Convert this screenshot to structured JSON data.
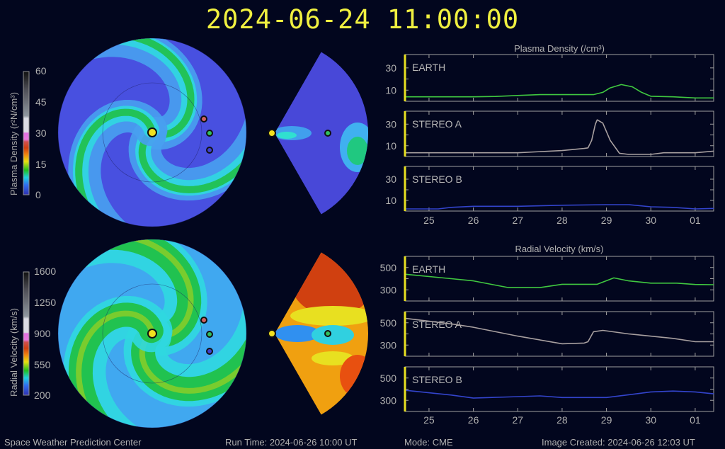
{
  "header": {
    "datetime": "2024-06-24  11:00:00"
  },
  "footer": {
    "org": "Space Weather Prediction Center",
    "run_time": "Run Time: 2024-06-26 10:00 UT",
    "mode": "Mode: CME",
    "created": "Image Created: 2024-06-26 12:03 UT"
  },
  "colorbars": {
    "density": {
      "label": "Plasma Density (r²N/cm³)",
      "ticks": [
        "60",
        "45",
        "30",
        "15",
        "0"
      ]
    },
    "velocity": {
      "label": "Radial Velocity (km/s)",
      "ticks": [
        "1600",
        "1250",
        "900",
        "550",
        "200"
      ]
    }
  },
  "markers": {
    "sun": "#f0e020",
    "stereo_a": "#d06060",
    "earth": "#30c060",
    "stereo_b": "#4040d0"
  },
  "chart_data": [
    {
      "type": "line",
      "title": "Plasma Density (/cm³)",
      "x_ticks": [
        "25",
        "26",
        "27",
        "28",
        "29",
        "30",
        "01"
      ],
      "y_ticks": [
        "30",
        "10"
      ],
      "ylim": [
        0,
        42
      ],
      "xlim": [
        "2024-06-24T11:00",
        "2024-07-01T10:00"
      ],
      "current_time": "2024-06-24T11:00",
      "series": [
        {
          "name": "EARTH",
          "color": "#40c840",
          "points": [
            [
              "2024-06-24T11:00",
              4
            ],
            [
              "2024-06-26T00:00",
              4
            ],
            [
              "2024-06-26T12:00",
              4.3
            ],
            [
              "2024-06-27T00:00",
              5.2
            ],
            [
              "2024-06-27T12:00",
              6
            ],
            [
              "2024-06-28T00:00",
              6
            ],
            [
              "2024-06-28T17:00",
              6
            ],
            [
              "2024-06-28T22:00",
              8
            ],
            [
              "2024-06-29T02:00",
              12
            ],
            [
              "2024-06-29T08:00",
              15
            ],
            [
              "2024-06-29T14:00",
              13
            ],
            [
              "2024-06-29T19:00",
              8
            ],
            [
              "2024-06-30T00:00",
              4.5
            ],
            [
              "2024-06-30T12:00",
              4
            ],
            [
              "2024-07-01T00:00",
              3
            ],
            [
              "2024-07-01T10:00",
              3
            ]
          ]
        },
        {
          "name": "STEREO A",
          "color": "#a8a0a0",
          "points": [
            [
              "2024-06-24T11:00",
              3.5
            ],
            [
              "2024-06-27T00:00",
              3.5
            ],
            [
              "2024-06-28T00:00",
              5.5
            ],
            [
              "2024-06-28T12:00",
              7.5
            ],
            [
              "2024-06-28T14:00",
              8
            ],
            [
              "2024-06-28T16:00",
              15
            ],
            [
              "2024-06-28T18:00",
              30
            ],
            [
              "2024-06-28T19:00",
              34
            ],
            [
              "2024-06-28T22:00",
              31
            ],
            [
              "2024-06-29T02:00",
              15
            ],
            [
              "2024-06-29T07:00",
              3
            ],
            [
              "2024-06-29T12:00",
              2
            ],
            [
              "2024-06-30T00:00",
              2
            ],
            [
              "2024-06-30T07:00",
              3.5
            ],
            [
              "2024-07-01T00:00",
              3.5
            ],
            [
              "2024-07-01T10:00",
              5
            ]
          ]
        },
        {
          "name": "STEREO B",
          "color": "#3344cc",
          "points": [
            [
              "2024-06-24T11:00",
              2
            ],
            [
              "2024-06-25T05:00",
              2
            ],
            [
              "2024-06-25T12:00",
              3.5
            ],
            [
              "2024-06-26T00:00",
              4.5
            ],
            [
              "2024-06-27T00:00",
              4.5
            ],
            [
              "2024-06-28T00:00",
              5.5
            ],
            [
              "2024-06-29T00:00",
              6
            ],
            [
              "2024-06-29T12:00",
              6
            ],
            [
              "2024-06-30T00:00",
              4
            ],
            [
              "2024-06-30T12:00",
              3.5
            ],
            [
              "2024-07-01T00:00",
              2
            ],
            [
              "2024-07-01T10:00",
              2.5
            ]
          ]
        }
      ]
    },
    {
      "type": "line",
      "title": "Radial Velocity (km/s)",
      "x_ticks": [
        "25",
        "26",
        "27",
        "28",
        "29",
        "30",
        "01"
      ],
      "y_ticks": [
        "500",
        "300"
      ],
      "ylim": [
        200,
        600
      ],
      "xlim": [
        "2024-06-24T11:00",
        "2024-07-01T10:00"
      ],
      "current_time": "2024-06-24T11:00",
      "series": [
        {
          "name": "EARTH",
          "color": "#40c840",
          "points": [
            [
              "2024-06-24T11:00",
              440
            ],
            [
              "2024-06-25T12:00",
              400
            ],
            [
              "2024-06-26T00:00",
              380
            ],
            [
              "2024-06-26T19:00",
              320
            ],
            [
              "2024-06-27T12:00",
              320
            ],
            [
              "2024-06-28T00:00",
              350
            ],
            [
              "2024-06-28T19:00",
              350
            ],
            [
              "2024-06-29T04:00",
              407
            ],
            [
              "2024-06-29T12:00",
              380
            ],
            [
              "2024-06-30T00:00",
              360
            ],
            [
              "2024-06-30T14:00",
              360
            ],
            [
              "2024-07-01T00:00",
              348
            ],
            [
              "2024-07-01T10:00",
              346
            ]
          ]
        },
        {
          "name": "STEREO A",
          "color": "#a8a0a0",
          "points": [
            [
              "2024-06-24T11:00",
              540
            ],
            [
              "2024-06-25T12:00",
              490
            ],
            [
              "2024-06-26T00:00",
              460
            ],
            [
              "2024-06-27T00:00",
              380
            ],
            [
              "2024-06-28T00:00",
              312
            ],
            [
              "2024-06-28T12:00",
              318
            ],
            [
              "2024-06-28T14:00",
              330
            ],
            [
              "2024-06-28T17:00",
              420
            ],
            [
              "2024-06-28T22:00",
              432
            ],
            [
              "2024-06-29T12:00",
              400
            ],
            [
              "2024-06-30T12:00",
              360
            ],
            [
              "2024-07-01T00:00",
              330
            ],
            [
              "2024-07-01T10:00",
              330
            ]
          ]
        },
        {
          "name": "STEREO B",
          "color": "#3344cc",
          "points": [
            [
              "2024-06-24T11:00",
              390
            ],
            [
              "2024-06-25T12:00",
              347
            ],
            [
              "2024-06-26T00:00",
              320
            ],
            [
              "2024-06-26T19:00",
              330
            ],
            [
              "2024-06-27T12:00",
              340
            ],
            [
              "2024-06-28T00:00",
              325
            ],
            [
              "2024-06-29T00:00",
              325
            ],
            [
              "2024-06-29T12:00",
              350
            ],
            [
              "2024-06-30T00:00",
              375
            ],
            [
              "2024-06-30T12:00",
              383
            ],
            [
              "2024-07-01T00:00",
              375
            ],
            [
              "2024-07-01T10:00",
              358
            ]
          ]
        }
      ]
    }
  ]
}
